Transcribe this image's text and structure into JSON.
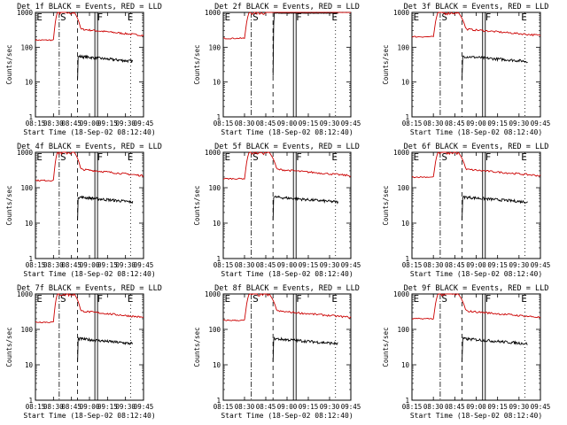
{
  "chart_data": [
    {
      "type": "line",
      "title": "Det 1f BLACK = Events, RED = LLD",
      "xlabel": "Start Time (18-Sep-02 08:12:40)",
      "ylabel": "Counts/sec",
      "ylog": true,
      "ylim": [
        1,
        1000
      ],
      "xticks": [
        "08:15",
        "08:30",
        "08:45",
        "09:00",
        "09:15",
        "09:30",
        "09:45"
      ],
      "yticks": [
        "1",
        "10",
        "100",
        "1000"
      ],
      "markers": [
        "E",
        "S",
        "F",
        "E"
      ],
      "series": [
        {
          "color": "#cc0000",
          "shape": "red"
        },
        {
          "color": "#000000",
          "shape": "black"
        }
      ]
    },
    {
      "type": "line",
      "title": "Det 2f BLACK = Events, RED = LLD",
      "xlabel": "Start Time (18-Sep-02 08:12:40)",
      "ylabel": "Counts/sec",
      "ylog": true,
      "ylim": [
        1,
        1000
      ],
      "xticks": [
        "08:15",
        "08:30",
        "08:45",
        "09:00",
        "09:15",
        "09:30",
        "09:45"
      ],
      "yticks": [
        "1",
        "10",
        "100",
        "1000"
      ],
      "markers": [
        "E",
        "S",
        "F",
        "E"
      ],
      "series": [
        {
          "color": "#cc0000",
          "shape": "red"
        },
        {
          "color": "#000000",
          "shape": "black2"
        }
      ]
    },
    {
      "type": "line",
      "title": "Det 3f BLACK = Events, RED = LLD",
      "xlabel": "Start Time (18-Sep-02 08:12:40)",
      "ylabel": "Counts/sec",
      "ylog": true,
      "ylim": [
        1,
        1000
      ],
      "xticks": [
        "08:15",
        "08:30",
        "08:45",
        "09:00",
        "09:15",
        "09:30",
        "09:45"
      ],
      "yticks": [
        "1",
        "10",
        "100",
        "1000"
      ],
      "markers": [
        "E",
        "S",
        "F",
        "E"
      ],
      "series": [
        {
          "color": "#cc0000",
          "shape": "red"
        },
        {
          "color": "#000000",
          "shape": "black"
        }
      ]
    },
    {
      "type": "line",
      "title": "Det 4f BLACK = Events, RED = LLD",
      "xlabel": "Start Time (18-Sep-02 08:12:40)",
      "ylabel": "Counts/sec",
      "ylog": true,
      "ylim": [
        1,
        1000
      ],
      "xticks": [
        "08:15",
        "08:30",
        "08:45",
        "09:00",
        "09:15",
        "09:30",
        "09:45"
      ],
      "yticks": [
        "1",
        "10",
        "100",
        "1000"
      ],
      "markers": [
        "E",
        "S",
        "F",
        "E"
      ],
      "series": [
        {
          "color": "#cc0000",
          "shape": "red"
        },
        {
          "color": "#000000",
          "shape": "black"
        }
      ]
    },
    {
      "type": "line",
      "title": "Det 5f BLACK = Events, RED = LLD",
      "xlabel": "Start Time (18-Sep-02 08:12:40)",
      "ylabel": "Counts/sec",
      "ylog": true,
      "ylim": [
        1,
        1000
      ],
      "xticks": [
        "08:15",
        "08:30",
        "08:45",
        "09:00",
        "09:15",
        "09:30",
        "09:45"
      ],
      "yticks": [
        "1",
        "10",
        "100",
        "1000"
      ],
      "markers": [
        "E",
        "S",
        "F",
        "E"
      ],
      "series": [
        {
          "color": "#cc0000",
          "shape": "red"
        },
        {
          "color": "#000000",
          "shape": "black"
        }
      ]
    },
    {
      "type": "line",
      "title": "Det 6f BLACK = Events, RED = LLD",
      "xlabel": "Start Time (18-Sep-02 08:12:40)",
      "ylabel": "Counts/sec",
      "ylog": true,
      "ylim": [
        1,
        1000
      ],
      "xticks": [
        "08:15",
        "08:30",
        "08:45",
        "09:00",
        "09:15",
        "09:30",
        "09:45"
      ],
      "yticks": [
        "1",
        "10",
        "100",
        "1000"
      ],
      "markers": [
        "E",
        "S",
        "F",
        "E"
      ],
      "series": [
        {
          "color": "#cc0000",
          "shape": "red"
        },
        {
          "color": "#000000",
          "shape": "black"
        }
      ]
    },
    {
      "type": "line",
      "title": "Det 7f BLACK = Events, RED = LLD",
      "xlabel": "Start Time (18-Sep-02 08:12:40)",
      "ylabel": "Counts/sec",
      "ylog": true,
      "ylim": [
        1,
        1000
      ],
      "xticks": [
        "08:15",
        "08:30",
        "08:45",
        "09:00",
        "09:15",
        "09:30",
        "09:45"
      ],
      "yticks": [
        "1",
        "10",
        "100",
        "1000"
      ],
      "markers": [
        "E",
        "S",
        "F",
        "E"
      ],
      "series": [
        {
          "color": "#cc0000",
          "shape": "red"
        },
        {
          "color": "#000000",
          "shape": "black"
        }
      ]
    },
    {
      "type": "line",
      "title": "Det 8f BLACK = Events, RED = LLD",
      "xlabel": "Start Time (18-Sep-02 08:12:40)",
      "ylabel": "Counts/sec",
      "ylog": true,
      "ylim": [
        1,
        1000
      ],
      "xticks": [
        "08:15",
        "08:30",
        "08:45",
        "09:00",
        "09:15",
        "09:30",
        "09:45"
      ],
      "yticks": [
        "1",
        "10",
        "100",
        "1000"
      ],
      "markers": [
        "E",
        "S",
        "F",
        "E"
      ],
      "series": [
        {
          "color": "#cc0000",
          "shape": "red"
        },
        {
          "color": "#000000",
          "shape": "black"
        }
      ]
    },
    {
      "type": "line",
      "title": "Det 9f BLACK = Events, RED = LLD",
      "xlabel": "Start Time (18-Sep-02 08:12:40)",
      "ylabel": "Counts/sec",
      "ylog": true,
      "ylim": [
        1,
        1000
      ],
      "xticks": [
        "08:15",
        "08:30",
        "08:45",
        "09:00",
        "09:15",
        "09:30",
        "09:45"
      ],
      "yticks": [
        "1",
        "10",
        "100",
        "1000"
      ],
      "markers": [
        "E",
        "S",
        "F",
        "E"
      ],
      "series": [
        {
          "color": "#cc0000",
          "shape": "red"
        },
        {
          "color": "#000000",
          "shape": "black"
        }
      ]
    }
  ]
}
